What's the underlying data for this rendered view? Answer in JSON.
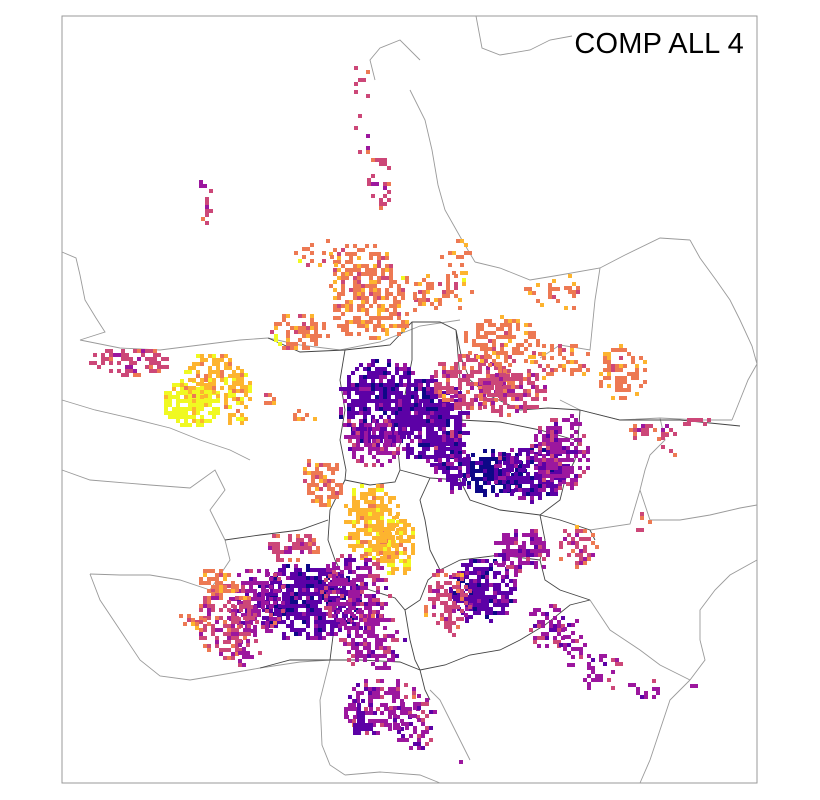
{
  "map": {
    "title": "COMP ALL 4",
    "palette": "plasma",
    "palette_colors": [
      "#0d0887",
      "#5c01a6",
      "#9c179e",
      "#cc4778",
      "#ed7953",
      "#fdb42f",
      "#f0f921"
    ],
    "frame_color": "#999999",
    "boundary_color": "#9a9a9a",
    "inner_boundary_color": "#444444",
    "background": "#ffffff"
  }
}
